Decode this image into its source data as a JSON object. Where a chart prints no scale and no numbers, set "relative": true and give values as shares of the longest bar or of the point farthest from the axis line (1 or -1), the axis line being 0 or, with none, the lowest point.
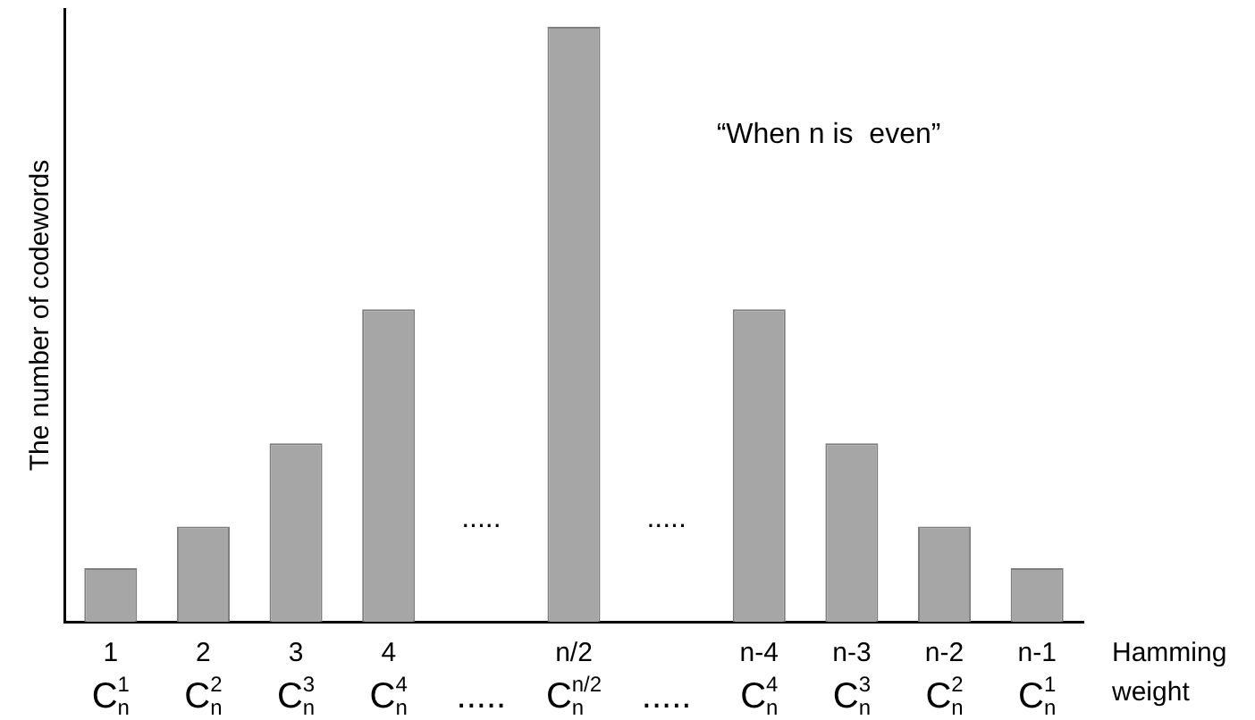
{
  "chart_data": {
    "type": "bar",
    "relative": true,
    "xlabel": "Hamming weight",
    "ylabel": "The number of codewords",
    "categories": [
      "1\nC$_{n}$$^{1}$",
      "2\nC$_{n}$$^{2}$",
      "3\nC$_{n}$$^{3}$",
      "4\nC$_{n}$$^{4}$",
      "\n.....",
      "n/2\nC$_{n}$$^{n/2}$",
      "\n.....",
      "n-4\nC$_{n}$$^{4}$",
      "n-3\nC$_{n}$$^{3}$",
      "n-2\nC$_{n}$$^{2}$",
      "n-1\nC$_{n}$$^{1}$"
    ],
    "values": [
      0.09,
      0.16,
      0.3,
      0.525,
      null,
      1,
      null,
      0.525,
      0.3,
      0.16,
      0.09
    ],
    "color": "#a6a6a6",
    "annotations": [
      "“When n is  even”",
      ".....",
      "....."
    ],
    "grid": false,
    "legend": false
  }
}
